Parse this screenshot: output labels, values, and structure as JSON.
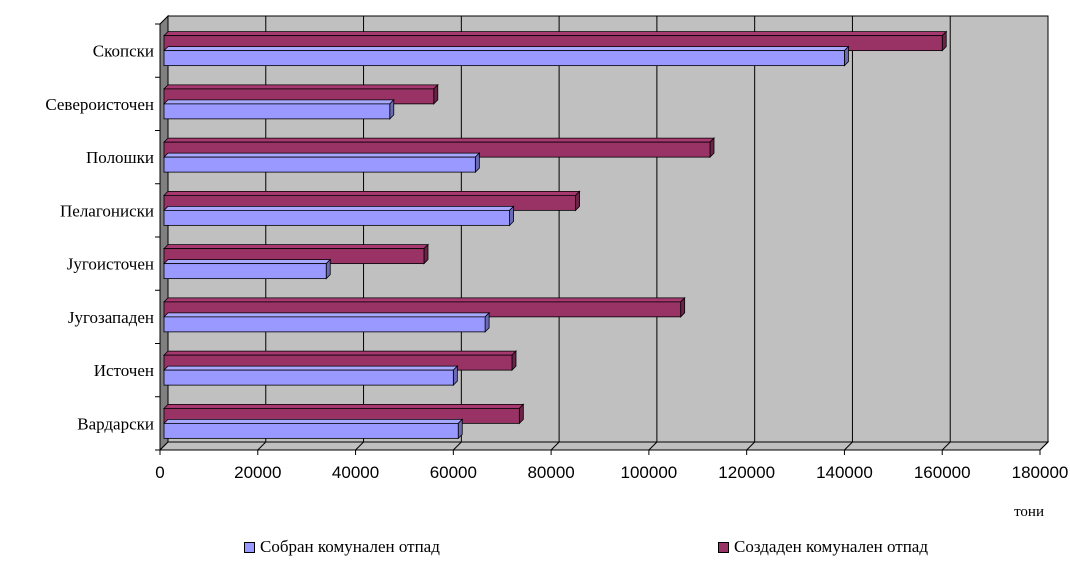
{
  "chart_data": {
    "type": "bar",
    "orientation": "horizontal",
    "categories": [
      "Скопски",
      "Североисточен",
      "Полошки",
      "Пелагониски",
      "Југоисточен",
      "Југозападен",
      "Источен",
      "Вардарски"
    ],
    "series": [
      {
        "name": "Создаден комунален отпад",
        "color": "#993366",
        "values": [
          160000,
          56000,
          112500,
          85000,
          54000,
          106500,
          72000,
          73500
        ]
      },
      {
        "name": "Собран комунален отпад",
        "color": "#9999ff",
        "values": [
          140000,
          47000,
          64500,
          71500,
          34000,
          66500,
          60000,
          61000
        ]
      }
    ],
    "x_ticks": [
      "0",
      "20000",
      "40000",
      "60000",
      "80000",
      "100000",
      "120000",
      "140000",
      "160000",
      "180000"
    ],
    "xlim": [
      0,
      180000
    ],
    "xlabel": "тони",
    "grid": true,
    "legend_position": "bottom"
  },
  "legend": {
    "collected": "Собран комунален отпад",
    "created": "Создаден комунален отпад"
  }
}
